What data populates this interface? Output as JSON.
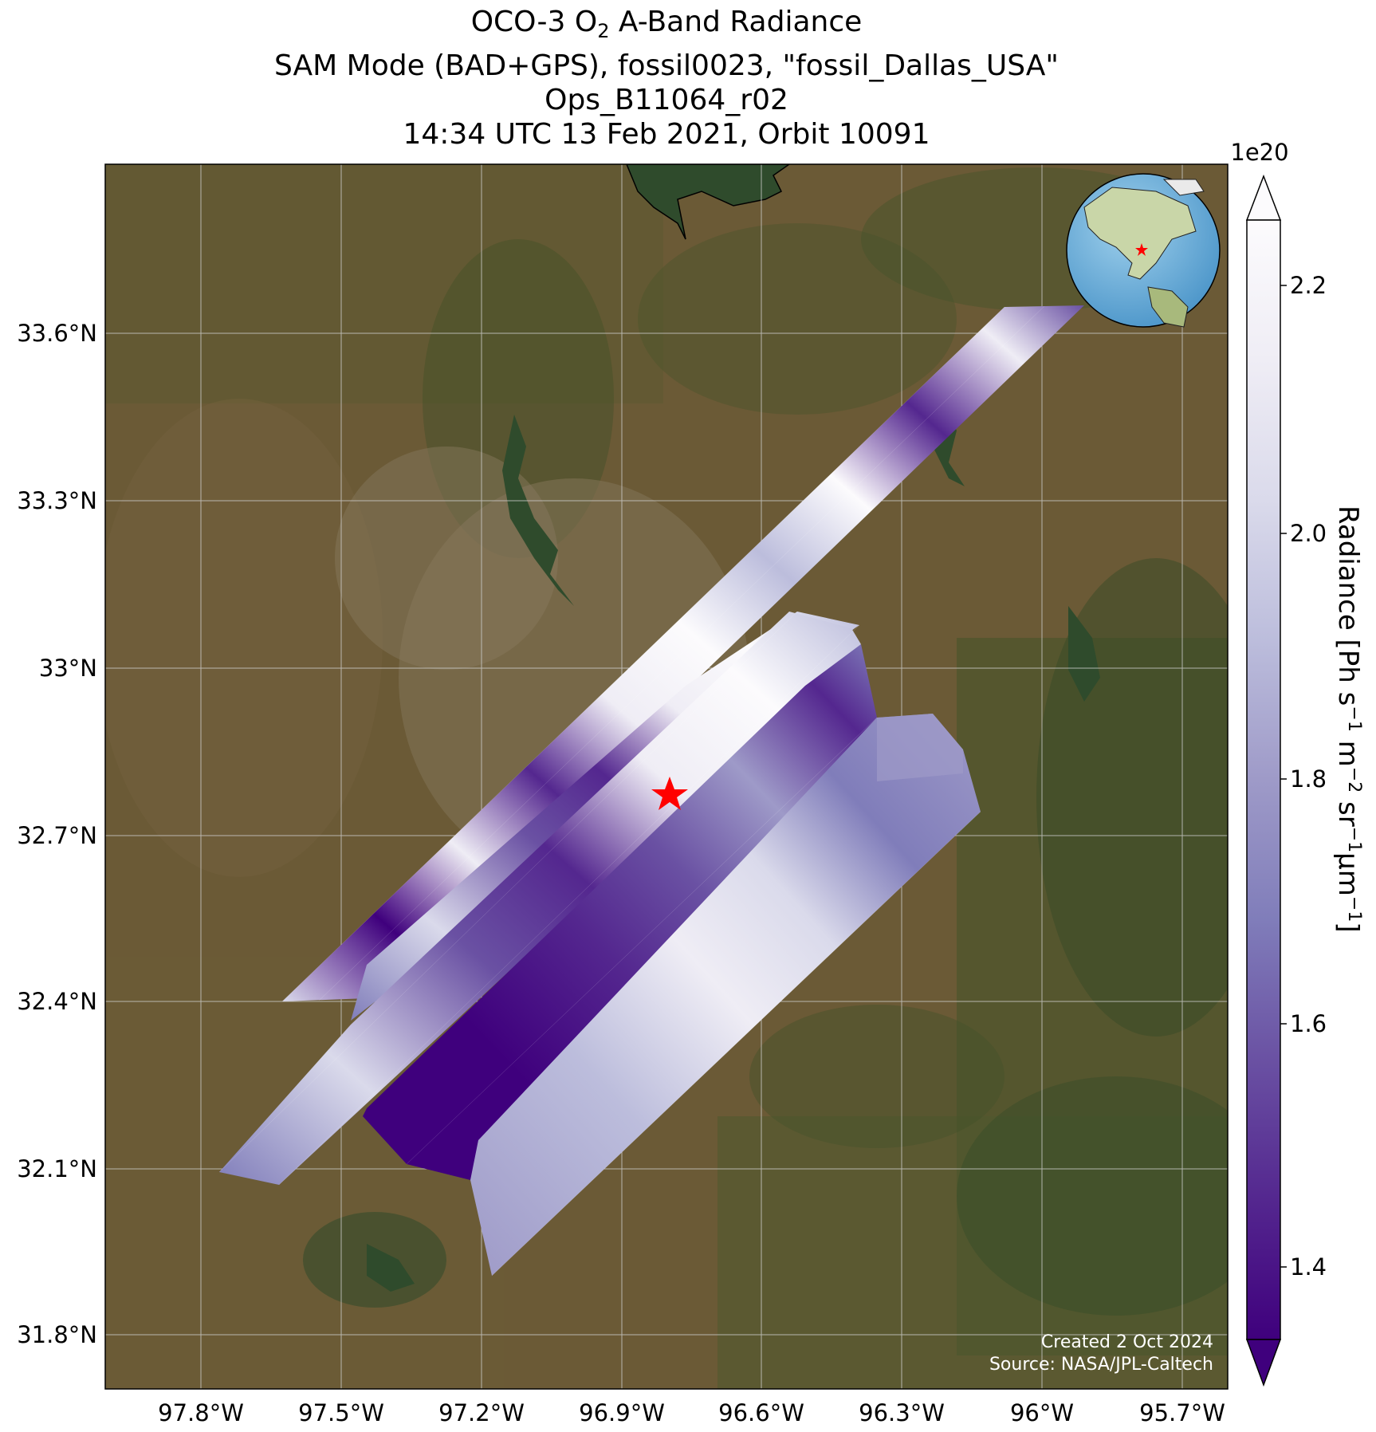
{
  "title": {
    "line1_prefix": "OCO-3 O",
    "line1_subscript": "2",
    "line1_suffix": " A-Band Radiance",
    "line2": "SAM Mode (BAD+GPS), fossil0023, \"fossil_Dallas_USA\"",
    "line3": "Ops_B11064_r02",
    "line4": "14:34 UTC 13 Feb 2021, Orbit 10091"
  },
  "map": {
    "basemap": "satellite-imagery",
    "lon_ticks": [
      "97.8°W",
      "97.5°W",
      "97.2°W",
      "96.9°W",
      "96.6°W",
      "96.3°W",
      "96°W",
      "95.7°W"
    ],
    "lat_ticks": [
      "33.6°N",
      "33.3°N",
      "33°N",
      "32.7°N",
      "32.4°N",
      "32.1°N",
      "31.8°N"
    ],
    "lon_range": [
      -98.0,
      -95.6
    ],
    "lat_range": [
      31.7,
      33.9
    ],
    "target_marker": "star",
    "target_color": "#ff0000",
    "target_location": {
      "lon": -96.8,
      "lat": 32.78
    },
    "inset_globe": "globe-icon",
    "gridlines": true
  },
  "colorbar": {
    "exponent_label": "1e20",
    "ticks": [
      "2.2",
      "2.0",
      "1.8",
      "1.6",
      "1.4"
    ],
    "tick_values": [
      2.2,
      2.0,
      1.8,
      1.6,
      1.4
    ],
    "range": [
      1.35,
      2.27
    ],
    "colormap": "Purples_r",
    "colors": [
      "#3f007d",
      "#54278f",
      "#6a51a3",
      "#807dba",
      "#9e9ac8",
      "#bcbddc",
      "#dadaeb",
      "#efedf5",
      "#fcfbfd"
    ],
    "label_main": "Radiance [Ph s",
    "label_parts": [
      {
        "text": "Radiance [Ph s",
        "sup": "−1"
      },
      {
        "text": " m",
        "sup": "−2"
      },
      {
        "text": " sr",
        "sup": "−1"
      },
      {
        "text": "μm",
        "sup": "−1"
      },
      {
        "text": "]",
        "sup": ""
      }
    ]
  },
  "credits": {
    "created": "Created 2 Oct 2024",
    "source": "Source: NASA/JPL-Caltech"
  }
}
